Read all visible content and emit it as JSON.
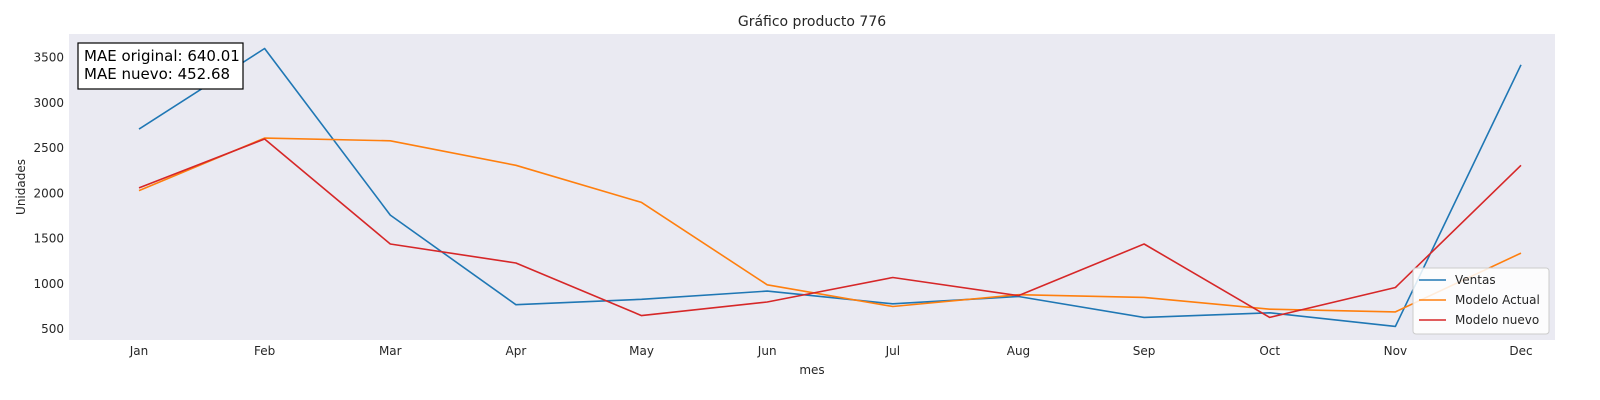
{
  "chart_data": {
    "type": "line",
    "title": "Gráfico producto 776",
    "xlabel": "mes",
    "ylabel": "Unidades",
    "categories": [
      "Jan",
      "Feb",
      "Mar",
      "Apr",
      "May",
      "Jun",
      "Jul",
      "Aug",
      "Sep",
      "Oct",
      "Nov",
      "Dec"
    ],
    "yticks": [
      500,
      1000,
      1500,
      2000,
      2500,
      3000,
      3500
    ],
    "ylim": [
      380,
      3760
    ],
    "grid": false,
    "legend_position": "bottom-right",
    "series": [
      {
        "name": "Ventas",
        "color": "#1f77b4",
        "values": [
          2710,
          3600,
          1760,
          770,
          830,
          920,
          780,
          860,
          630,
          680,
          530,
          3420
        ]
      },
      {
        "name": "Modelo Actual",
        "color": "#ff7f0e",
        "values": [
          2030,
          2610,
          2580,
          2310,
          1900,
          990,
          750,
          880,
          850,
          720,
          690,
          1340
        ]
      },
      {
        "name": "Modelo nuevo",
        "color": "#d62728",
        "values": [
          2060,
          2600,
          1440,
          1230,
          650,
          800,
          1070,
          870,
          1440,
          630,
          960,
          2310
        ]
      }
    ],
    "annotation": {
      "line1": "MAE original: 640.01",
      "line2": "MAE nuevo: 452.68"
    }
  }
}
